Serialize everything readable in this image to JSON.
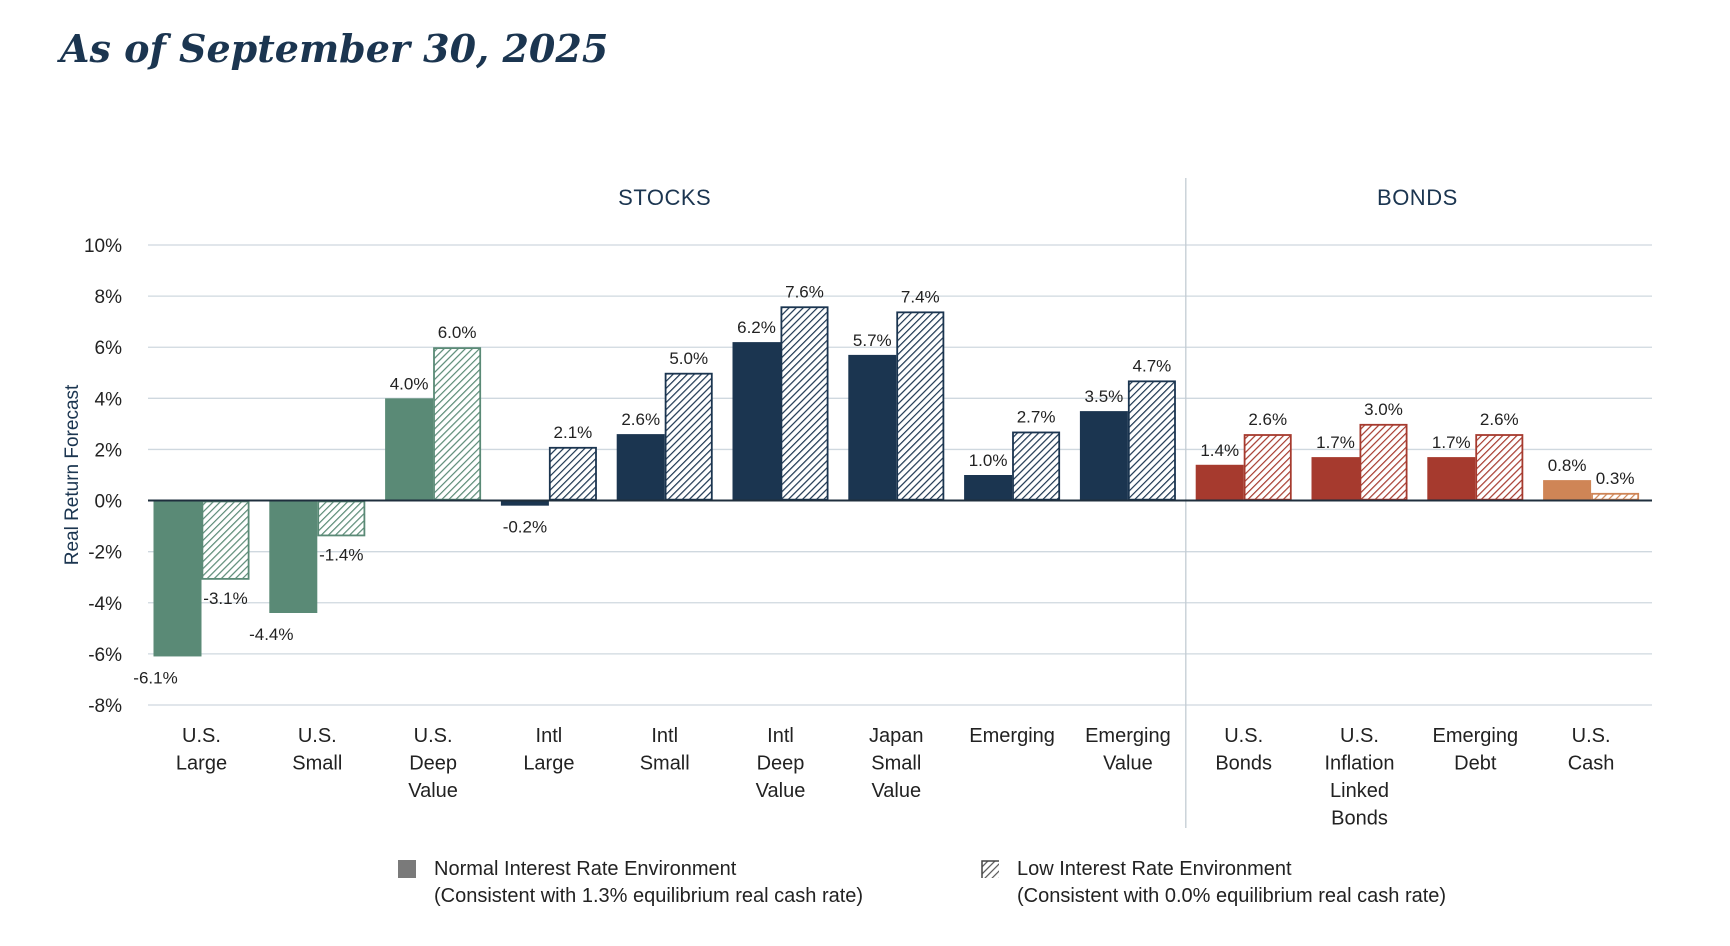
{
  "title": "As of September 30, 2025",
  "chart_data": {
    "type": "bar",
    "ylabel": "Real Return Forecast",
    "ylim": [
      -8,
      10
    ],
    "yticks": [
      10,
      8,
      6,
      4,
      2,
      0,
      -2,
      -4,
      -6,
      -8
    ],
    "ytick_labels": [
      "10%",
      "8%",
      "6%",
      "4%",
      "2%",
      "0%",
      "-2%",
      "-4%",
      "-6%",
      "-8%"
    ],
    "grid": true,
    "sections": [
      {
        "name": "STOCKS",
        "first": 0,
        "last": 8
      },
      {
        "name": "BONDS",
        "first": 9,
        "last": 12
      }
    ],
    "categories": [
      [
        "U.S.",
        "Large"
      ],
      [
        "U.S.",
        "Small"
      ],
      [
        "U.S.",
        "Deep",
        "Value"
      ],
      [
        "Intl",
        "Large"
      ],
      [
        "Intl",
        "Small"
      ],
      [
        "Intl",
        "Deep",
        "Value"
      ],
      [
        "Japan",
        "Small",
        "Value"
      ],
      [
        "Emerging"
      ],
      [
        "Emerging",
        "Value"
      ],
      [
        "U.S.",
        "Bonds"
      ],
      [
        "U.S.",
        "Inflation",
        "Linked",
        "Bonds"
      ],
      [
        "Emerging",
        "Debt"
      ],
      [
        "U.S.",
        "Cash"
      ]
    ],
    "colors": [
      "#5a8a76",
      "#5a8a76",
      "#5a8a76",
      "#1b3550",
      "#1b3550",
      "#1b3550",
      "#1b3550",
      "#1b3550",
      "#1b3550",
      "#a63a2e",
      "#a63a2e",
      "#a63a2e",
      "#cf8556"
    ],
    "series": [
      {
        "name": "Normal Interest Rate Environment",
        "values": [
          -6.1,
          -4.4,
          4.0,
          -0.2,
          2.6,
          6.2,
          5.7,
          1.0,
          3.5,
          1.4,
          1.7,
          1.7,
          0.8
        ],
        "labels": [
          "-6.1%",
          "-4.4%",
          "4.0%",
          "-0.2%",
          "2.6%",
          "6.2%",
          "5.7%",
          "1.0%",
          "3.5%",
          "1.4%",
          "1.7%",
          "1.7%",
          "0.8%"
        ]
      },
      {
        "name": "Low Interest Rate Environment",
        "values": [
          -3.1,
          -1.4,
          6.0,
          2.1,
          5.0,
          7.6,
          7.4,
          2.7,
          4.7,
          2.6,
          3.0,
          2.6,
          0.3
        ],
        "labels": [
          "-3.1%",
          "-1.4%",
          "6.0%",
          "2.1%",
          "5.0%",
          "7.6%",
          "7.4%",
          "2.7%",
          "4.7%",
          "2.6%",
          "3.0%",
          "2.6%",
          "0.3%"
        ]
      }
    ],
    "legend": {
      "placement": "bottom",
      "items": [
        {
          "title": "Normal Interest Rate Environment",
          "note": "(Consistent with 1.3% equilibrium real cash rate)",
          "color": "#777777"
        },
        {
          "title": "Low Interest Rate Environment",
          "note": "(Consistent with 0.0% equilibrium real cash rate)",
          "color": "#777777"
        }
      ]
    }
  }
}
